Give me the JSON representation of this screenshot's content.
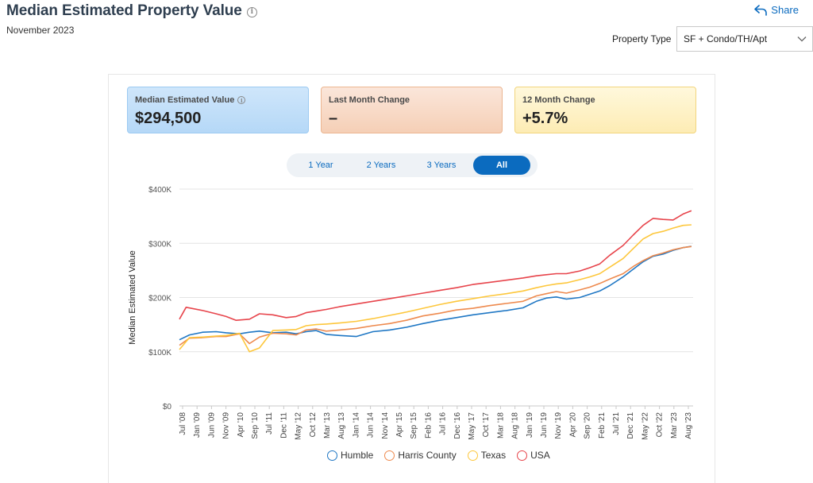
{
  "header": {
    "title": "Median Estimated Property Value",
    "info_icon": "i",
    "date": "November 2023",
    "share_label": "Share",
    "property_type_label": "Property Type",
    "property_type_value": "SF + Condo/TH/Apt"
  },
  "cards": [
    {
      "label": "Median Estimated Value",
      "value": "$294,500",
      "info": "i"
    },
    {
      "label": "Last Month Change",
      "value": "–"
    },
    {
      "label": "12 Month Change",
      "value": "+5.7%"
    }
  ],
  "ranges": [
    "1 Year",
    "2 Years",
    "3 Years",
    "All"
  ],
  "selected_range": "All",
  "colors": {
    "accent": "#0b6bbf",
    "humble": "#1f77c4",
    "harris": "#ee8a4e",
    "texas": "#fdc73c",
    "usa": "#e7444b"
  },
  "chart_data": {
    "type": "line",
    "ylabel": "Median Estimated Value",
    "xlabel": "",
    "ylim": [
      0,
      400000
    ],
    "yticks": [
      0,
      100000,
      200000,
      300000,
      400000
    ],
    "ytick_labels": [
      "$0",
      "$100K",
      "$200K",
      "$300K",
      "$400K"
    ],
    "xtick_labels": [
      "Jul '08",
      "Jan '09",
      "Jun '09",
      "Nov '09",
      "Apr '10",
      "Sep '10",
      "Jul '11",
      "Dec '11",
      "May '12",
      "Oct '12",
      "Mar '13",
      "Aug '13",
      "Jan '14",
      "Jun '14",
      "Nov '14",
      "Apr '15",
      "Sep '15",
      "Feb '16",
      "Jul '16",
      "Dec '16",
      "May '17",
      "Oct '17",
      "Mar '18",
      "Aug '18",
      "Jan '19",
      "Jun '19",
      "Nov '19",
      "Apr '20",
      "Sep '20",
      "Feb '21",
      "Jul '21",
      "Dec '21",
      "May '22",
      "Oct '22",
      "Mar '23",
      "Aug '23"
    ],
    "legend_position": "bottom",
    "grid": "horizontal",
    "series": [
      {
        "name": "Humble",
        "color_key": "humble",
        "points": [
          [
            2008.5,
            122000
          ],
          [
            2008.8,
            131000
          ],
          [
            2009.2,
            136000
          ],
          [
            2009.6,
            137000
          ],
          [
            2009.9,
            135000
          ],
          [
            2010.3,
            133000
          ],
          [
            2010.6,
            136000
          ],
          [
            2010.9,
            138000
          ],
          [
            2011.3,
            135000
          ],
          [
            2011.7,
            136000
          ],
          [
            2012.0,
            133000
          ],
          [
            2012.3,
            137000
          ],
          [
            2012.6,
            139000
          ],
          [
            2012.9,
            132000
          ],
          [
            2013.3,
            130000
          ],
          [
            2013.8,
            128000
          ],
          [
            2014.3,
            137000
          ],
          [
            2014.8,
            140000
          ],
          [
            2015.3,
            145000
          ],
          [
            2015.8,
            152000
          ],
          [
            2016.3,
            158000
          ],
          [
            2016.8,
            163000
          ],
          [
            2017.3,
            168000
          ],
          [
            2017.8,
            172000
          ],
          [
            2018.3,
            176000
          ],
          [
            2018.8,
            181000
          ],
          [
            2019.2,
            193000
          ],
          [
            2019.5,
            199000
          ],
          [
            2019.8,
            201000
          ],
          [
            2020.1,
            197000
          ],
          [
            2020.5,
            200000
          ],
          [
            2020.8,
            206000
          ],
          [
            2021.1,
            212000
          ],
          [
            2021.4,
            222000
          ],
          [
            2021.8,
            238000
          ],
          [
            2022.1,
            252000
          ],
          [
            2022.4,
            266000
          ],
          [
            2022.7,
            276000
          ],
          [
            2023.0,
            280000
          ],
          [
            2023.3,
            287000
          ],
          [
            2023.6,
            292000
          ],
          [
            2023.85,
            294500
          ]
        ]
      },
      {
        "name": "Harris County",
        "color_key": "harris",
        "points": [
          [
            2008.5,
            112000
          ],
          [
            2008.8,
            125000
          ],
          [
            2009.2,
            126000
          ],
          [
            2009.6,
            128000
          ],
          [
            2009.9,
            128000
          ],
          [
            2010.3,
            133000
          ],
          [
            2010.6,
            115000
          ],
          [
            2010.9,
            127000
          ],
          [
            2011.3,
            134000
          ],
          [
            2011.7,
            133000
          ],
          [
            2012.0,
            131000
          ],
          [
            2012.3,
            140000
          ],
          [
            2012.6,
            142000
          ],
          [
            2012.9,
            138000
          ],
          [
            2013.3,
            140000
          ],
          [
            2013.8,
            143000
          ],
          [
            2014.3,
            148000
          ],
          [
            2014.8,
            152000
          ],
          [
            2015.3,
            158000
          ],
          [
            2015.8,
            166000
          ],
          [
            2016.3,
            171000
          ],
          [
            2016.8,
            177000
          ],
          [
            2017.3,
            180000
          ],
          [
            2017.8,
            185000
          ],
          [
            2018.3,
            189000
          ],
          [
            2018.8,
            193000
          ],
          [
            2019.2,
            203000
          ],
          [
            2019.5,
            207000
          ],
          [
            2019.8,
            211000
          ],
          [
            2020.1,
            208000
          ],
          [
            2020.5,
            214000
          ],
          [
            2020.8,
            219000
          ],
          [
            2021.1,
            226000
          ],
          [
            2021.4,
            234000
          ],
          [
            2021.8,
            244000
          ],
          [
            2022.1,
            257000
          ],
          [
            2022.4,
            268000
          ],
          [
            2022.7,
            277000
          ],
          [
            2023.0,
            282000
          ],
          [
            2023.3,
            288000
          ],
          [
            2023.6,
            292000
          ],
          [
            2023.85,
            294000
          ]
        ]
      },
      {
        "name": "Texas",
        "color_key": "texas",
        "points": [
          [
            2008.5,
            104000
          ],
          [
            2008.8,
            126000
          ],
          [
            2009.2,
            127000
          ],
          [
            2009.6,
            129000
          ],
          [
            2009.9,
            130000
          ],
          [
            2010.3,
            134000
          ],
          [
            2010.6,
            100000
          ],
          [
            2010.9,
            107000
          ],
          [
            2011.3,
            139000
          ],
          [
            2011.7,
            140000
          ],
          [
            2012.0,
            141000
          ],
          [
            2012.3,
            148000
          ],
          [
            2012.6,
            150000
          ],
          [
            2012.9,
            151000
          ],
          [
            2013.3,
            153000
          ],
          [
            2013.8,
            156000
          ],
          [
            2014.3,
            161000
          ],
          [
            2014.8,
            167000
          ],
          [
            2015.3,
            173000
          ],
          [
            2015.8,
            180000
          ],
          [
            2016.3,
            187000
          ],
          [
            2016.8,
            193000
          ],
          [
            2017.3,
            198000
          ],
          [
            2017.8,
            203000
          ],
          [
            2018.3,
            207000
          ],
          [
            2018.8,
            212000
          ],
          [
            2019.2,
            218000
          ],
          [
            2019.5,
            222000
          ],
          [
            2019.8,
            225000
          ],
          [
            2020.1,
            227000
          ],
          [
            2020.5,
            233000
          ],
          [
            2020.8,
            238000
          ],
          [
            2021.1,
            244000
          ],
          [
            2021.4,
            256000
          ],
          [
            2021.8,
            272000
          ],
          [
            2022.1,
            290000
          ],
          [
            2022.4,
            308000
          ],
          [
            2022.7,
            318000
          ],
          [
            2023.0,
            322000
          ],
          [
            2023.3,
            328000
          ],
          [
            2023.6,
            333000
          ],
          [
            2023.85,
            334000
          ]
        ]
      },
      {
        "name": "USA",
        "color_key": "usa",
        "points": [
          [
            2008.5,
            160000
          ],
          [
            2008.7,
            182000
          ],
          [
            2009.2,
            176000
          ],
          [
            2009.6,
            170000
          ],
          [
            2009.9,
            165000
          ],
          [
            2010.2,
            158000
          ],
          [
            2010.6,
            160000
          ],
          [
            2010.9,
            170000
          ],
          [
            2011.3,
            168000
          ],
          [
            2011.7,
            163000
          ],
          [
            2012.0,
            165000
          ],
          [
            2012.3,
            172000
          ],
          [
            2012.6,
            175000
          ],
          [
            2012.9,
            178000
          ],
          [
            2013.3,
            183000
          ],
          [
            2013.8,
            188000
          ],
          [
            2014.3,
            193000
          ],
          [
            2014.8,
            198000
          ],
          [
            2015.3,
            203000
          ],
          [
            2015.8,
            208000
          ],
          [
            2016.3,
            213000
          ],
          [
            2016.8,
            218000
          ],
          [
            2017.3,
            224000
          ],
          [
            2017.8,
            228000
          ],
          [
            2018.3,
            232000
          ],
          [
            2018.8,
            236000
          ],
          [
            2019.2,
            240000
          ],
          [
            2019.5,
            242000
          ],
          [
            2019.8,
            244000
          ],
          [
            2020.1,
            244000
          ],
          [
            2020.5,
            249000
          ],
          [
            2020.8,
            255000
          ],
          [
            2021.1,
            262000
          ],
          [
            2021.4,
            278000
          ],
          [
            2021.8,
            296000
          ],
          [
            2022.1,
            315000
          ],
          [
            2022.4,
            333000
          ],
          [
            2022.7,
            346000
          ],
          [
            2023.0,
            344000
          ],
          [
            2023.3,
            343000
          ],
          [
            2023.6,
            354000
          ],
          [
            2023.85,
            360000
          ]
        ]
      }
    ]
  }
}
